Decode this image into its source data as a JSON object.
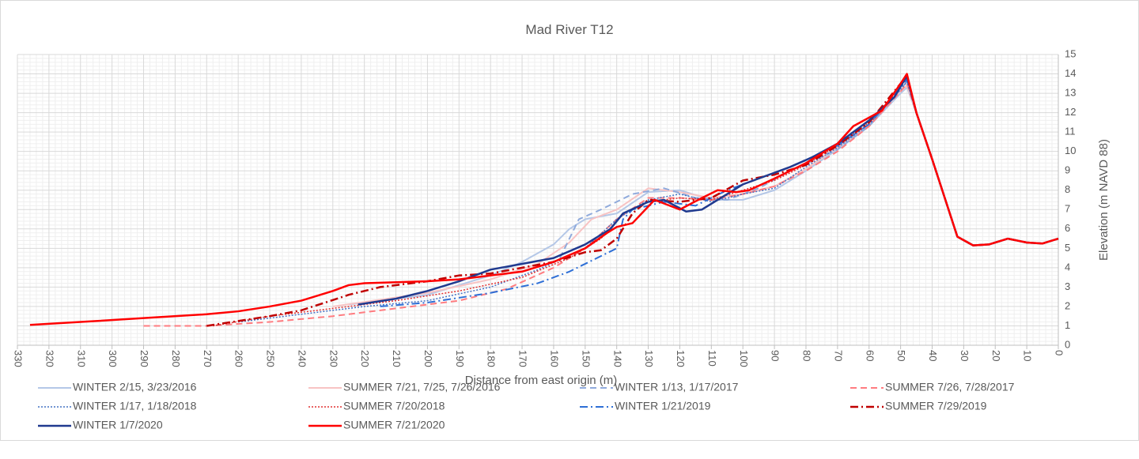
{
  "chart_data": {
    "type": "line",
    "title": "Mad River T12",
    "x_label": "Distance from east origin (m)",
    "y_label": "Elevation (m NAVD 88)",
    "y_axis_side": "right",
    "xlim": [
      330,
      0
    ],
    "xticks": [
      330,
      320,
      310,
      300,
      290,
      280,
      270,
      260,
      250,
      240,
      230,
      220,
      210,
      200,
      190,
      180,
      170,
      160,
      150,
      140,
      130,
      120,
      110,
      100,
      90,
      80,
      70,
      60,
      50,
      40,
      30,
      20,
      10,
      0
    ],
    "ylim": [
      0,
      15
    ],
    "yticks": [
      0,
      1,
      2,
      3,
      4,
      5,
      6,
      7,
      8,
      9,
      10,
      11,
      12,
      13,
      14,
      15
    ],
    "grid": true,
    "minor_grid_divisions": 5,
    "legend": "bottom",
    "series": [
      {
        "name": "WINTER 2/15, 3/23/2016",
        "color": "#b4c7e7",
        "dash": "solid",
        "width": 2,
        "x": [
          225,
          200,
          180,
          170,
          160,
          155,
          150,
          140,
          130,
          120,
          110,
          100,
          90,
          80,
          70,
          60,
          50,
          48,
          45,
          40,
          32,
          27,
          22,
          16,
          10,
          5,
          0
        ],
        "values": [
          2.1,
          2.6,
          3.6,
          4.3,
          5.2,
          6.0,
          6.5,
          6.8,
          7.9,
          8.0,
          7.5,
          7.5,
          8.0,
          9.0,
          10.1,
          11.3,
          13.0,
          13.3,
          12,
          9.6,
          5.6,
          5.15,
          5.2,
          5.5,
          5.3,
          5.25,
          5.5
        ]
      },
      {
        "name": "SUMMER 7/21, 7/25, 7/26/2016",
        "color": "#f8c3c3",
        "dash": "solid",
        "width": 2,
        "x": [
          230,
          200,
          180,
          165,
          155,
          148,
          140,
          130,
          120,
          110,
          100,
          90,
          80,
          70,
          60,
          50,
          48,
          45,
          40,
          32,
          27,
          22,
          16,
          10,
          5,
          0
        ],
        "values": [
          2.0,
          2.7,
          3.4,
          4.2,
          5.3,
          6.5,
          7.0,
          8.1,
          7.9,
          7.6,
          7.8,
          8.2,
          9.1,
          10.2,
          11.4,
          13.1,
          13.4,
          12,
          9.6,
          5.6,
          5.15,
          5.2,
          5.5,
          5.3,
          5.25,
          5.5
        ]
      },
      {
        "name": "WINTER 1/13, 1/17/2017",
        "color": "#8faadc",
        "dash": "dash",
        "width": 2,
        "x": [
          158,
          152,
          145,
          135,
          125,
          115,
          105,
          95,
          85,
          70,
          60,
          50,
          48,
          45,
          40,
          32,
          27,
          22,
          16,
          10,
          5,
          0
        ],
        "values": [
          4.5,
          6.5,
          7.0,
          7.8,
          8.1,
          7.6,
          7.5,
          8.1,
          9.0,
          10.1,
          11.3,
          13.2,
          13.6,
          12,
          9.6,
          5.6,
          5.15,
          5.2,
          5.5,
          5.3,
          5.25,
          5.5
        ]
      },
      {
        "name": "SUMMER 7/26, 7/28/2017",
        "color": "#ff7c80",
        "dash": "dash",
        "width": 2,
        "x": [
          290,
          270,
          250,
          230,
          210,
          190,
          175,
          160,
          150,
          140,
          130,
          120,
          110,
          100,
          90,
          80,
          70,
          60,
          50,
          48,
          45,
          40,
          32,
          27,
          22,
          16,
          10,
          5,
          0
        ],
        "values": [
          1.0,
          1.0,
          1.2,
          1.5,
          1.9,
          2.3,
          2.9,
          4.0,
          5.0,
          6.5,
          7.6,
          7.6,
          7.5,
          7.8,
          8.2,
          9.0,
          10.0,
          11.3,
          13.1,
          13.5,
          12,
          9.6,
          5.6,
          5.15,
          5.2,
          5.5,
          5.3,
          5.25,
          5.5
        ]
      },
      {
        "name": "WINTER 1/17, 1/18/2018",
        "color": "#4472c4",
        "dash": "dot",
        "width": 1.5,
        "x": [
          260,
          240,
          220,
          200,
          180,
          165,
          150,
          140,
          130,
          120,
          110,
          100,
          90,
          80,
          70,
          60,
          50,
          48,
          45,
          40,
          32,
          27,
          22,
          16,
          10,
          5,
          0
        ],
        "values": [
          1.2,
          1.6,
          2.0,
          2.3,
          3.0,
          3.9,
          5.0,
          6.5,
          7.5,
          7.8,
          7.4,
          7.8,
          8.1,
          9.2,
          10.2,
          11.4,
          13.2,
          13.6,
          12,
          9.6,
          5.6,
          5.15,
          5.2,
          5.5,
          5.3,
          5.25,
          5.5
        ]
      },
      {
        "name": "SUMMER 7/20/2018",
        "color": "#e03030",
        "dash": "dot",
        "width": 1.5,
        "x": [
          268,
          250,
          230,
          210,
          190,
          170,
          155,
          145,
          138,
          130,
          120,
          110,
          100,
          90,
          80,
          70,
          60,
          50,
          48,
          45,
          40,
          32,
          27,
          22,
          16,
          10,
          5,
          0
        ],
        "values": [
          1.0,
          1.5,
          1.9,
          2.3,
          2.8,
          3.5,
          4.5,
          5.5,
          6.8,
          7.4,
          7.6,
          7.5,
          8.0,
          8.5,
          9.3,
          10.3,
          11.5,
          13.3,
          13.8,
          12,
          9.6,
          5.6,
          5.15,
          5.2,
          5.5,
          5.3,
          5.25,
          5.5
        ]
      },
      {
        "name": "WINTER 1/21/2019",
        "color": "#2e6fd6",
        "dash": "dashdot",
        "width": 2,
        "x": [
          215,
          200,
          180,
          165,
          155,
          145,
          140,
          138,
          135,
          125,
          115,
          105,
          95,
          85,
          70,
          60,
          50,
          48,
          45,
          40,
          32,
          27,
          22,
          16,
          10,
          5,
          0
        ],
        "values": [
          2.0,
          2.2,
          2.7,
          3.2,
          3.8,
          4.6,
          5.0,
          6.5,
          7.0,
          7.4,
          7.2,
          8.0,
          8.6,
          9.2,
          10.3,
          11.4,
          13.3,
          13.7,
          12,
          9.6,
          5.6,
          5.15,
          5.2,
          5.5,
          5.3,
          5.25,
          5.5
        ]
      },
      {
        "name": "SUMMER 7/29/2019",
        "color": "#c00000",
        "dash": "dashdot",
        "width": 2.5,
        "x": [
          270,
          250,
          240,
          225,
          215,
          200,
          190,
          180,
          160,
          150,
          145,
          140,
          135,
          130,
          120,
          110,
          100,
          90,
          80,
          70,
          60,
          50,
          48,
          45,
          40,
          32,
          27,
          22,
          16,
          10,
          5,
          0
        ],
        "values": [
          1.0,
          1.5,
          1.8,
          2.6,
          3.0,
          3.3,
          3.6,
          3.7,
          4.3,
          4.8,
          4.9,
          5.5,
          6.8,
          7.5,
          7.4,
          7.6,
          8.5,
          8.8,
          9.3,
          10.3,
          11.5,
          13.5,
          13.9,
          12,
          9.6,
          5.6,
          5.15,
          5.2,
          5.5,
          5.3,
          5.25,
          5.5
        ]
      },
      {
        "name": "WINTER 1/7/2020",
        "color": "#203a8f",
        "dash": "solid",
        "width": 2.5,
        "x": [
          222,
          210,
          200,
          190,
          180,
          170,
          160,
          150,
          142,
          138,
          130,
          125,
          118,
          113,
          105,
          100,
          95,
          85,
          78,
          70,
          60,
          52,
          48,
          45,
          40,
          32,
          27,
          22,
          16,
          10,
          5,
          0
        ],
        "values": [
          2.1,
          2.4,
          2.8,
          3.3,
          3.9,
          4.2,
          4.5,
          5.2,
          6.0,
          6.8,
          7.4,
          7.5,
          6.9,
          7.0,
          7.8,
          8.3,
          8.6,
          9.2,
          9.7,
          10.4,
          11.6,
          12.8,
          13.9,
          12,
          9.6,
          5.6,
          5.15,
          5.2,
          5.5,
          5.3,
          5.25,
          5.5
        ]
      },
      {
        "name": "SUMMER 7/21/2020",
        "color": "#ff0000",
        "dash": "solid",
        "width": 2.5,
        "x": [
          326,
          310,
          290,
          270,
          260,
          250,
          240,
          230,
          225,
          220,
          200,
          190,
          180,
          170,
          160,
          150,
          143,
          140,
          135,
          128,
          120,
          113,
          108,
          102,
          98,
          90,
          80,
          70,
          65,
          56,
          50,
          48,
          45,
          40,
          32,
          27,
          22,
          16,
          10,
          5,
          0
        ],
        "values": [
          1.05,
          1.2,
          1.4,
          1.6,
          1.75,
          2.0,
          2.3,
          2.8,
          3.1,
          3.2,
          3.3,
          3.4,
          3.6,
          3.8,
          4.3,
          5.0,
          5.8,
          6.1,
          6.3,
          7.5,
          7.0,
          7.6,
          8.0,
          7.9,
          8.0,
          8.6,
          9.4,
          10.4,
          11.3,
          12.1,
          13.5,
          14.0,
          12,
          9.6,
          5.6,
          5.15,
          5.2,
          5.5,
          5.3,
          5.25,
          5.5
        ]
      }
    ]
  }
}
